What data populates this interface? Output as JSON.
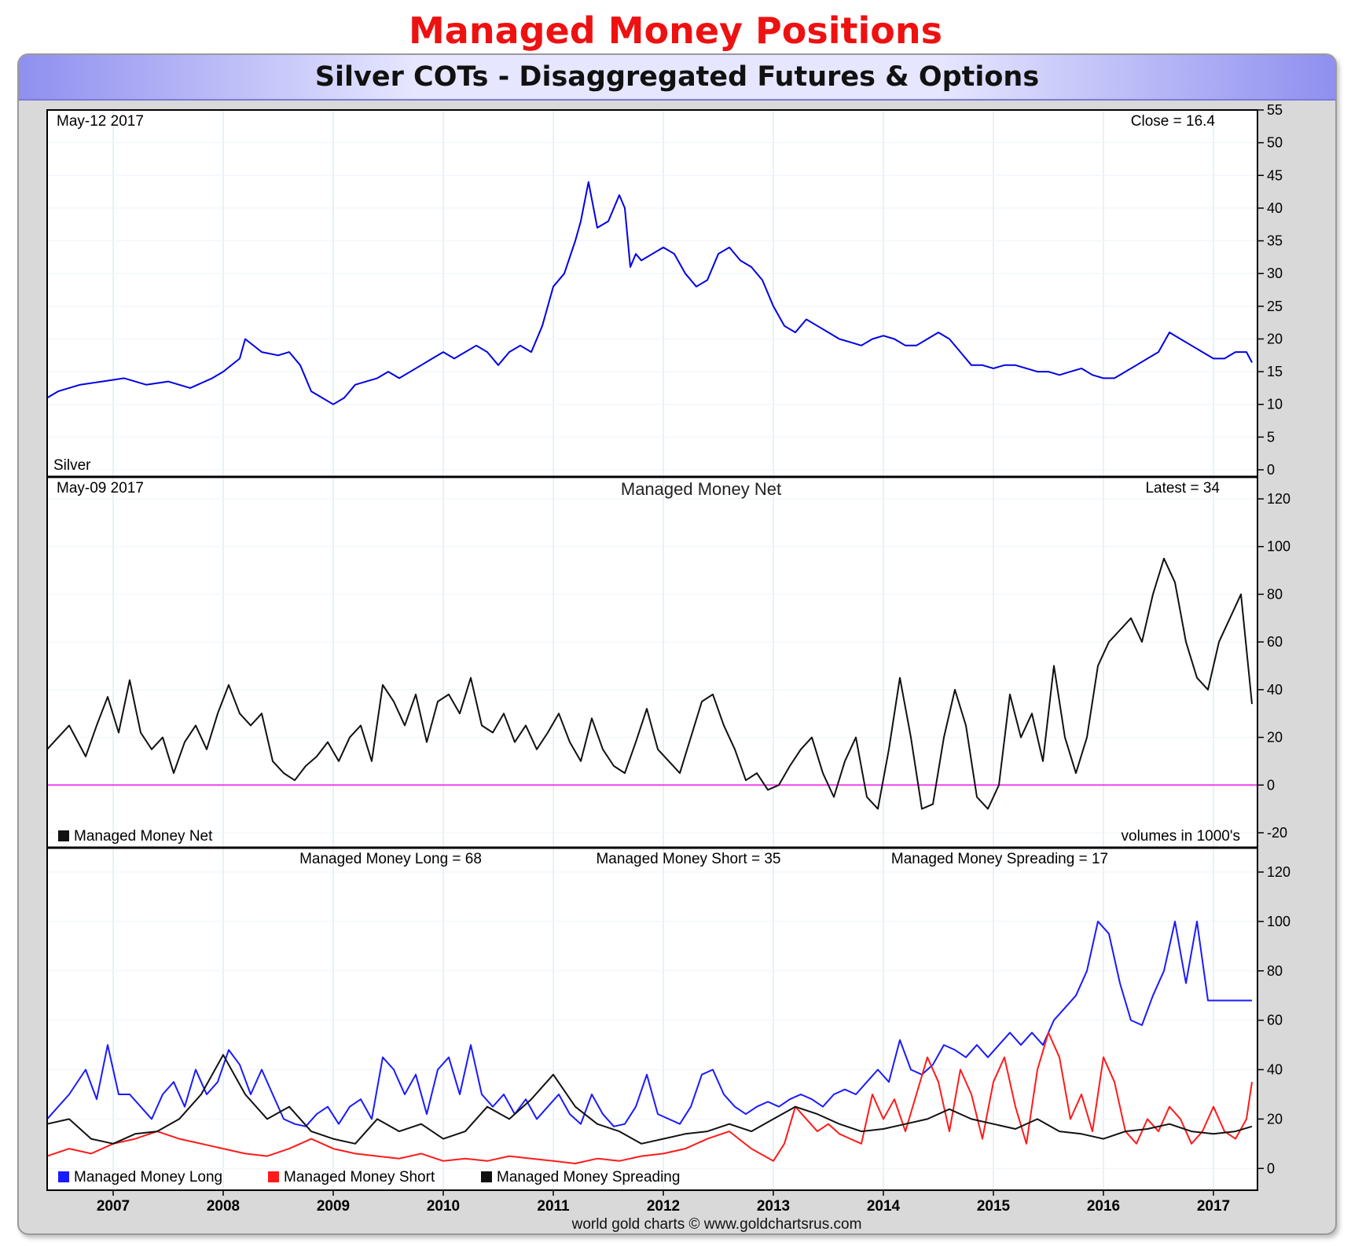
{
  "page": {
    "title": "Managed Money Positions",
    "subtitle": "Silver COTs - Disaggregated Futures & Options",
    "footer": "world gold charts © www.goldchartsrus.com",
    "colors": {
      "title": "#ee1111",
      "price_line": "#0000e6",
      "net_line": "#111111",
      "zero_line": "#ee44ee",
      "long": "#1a1aff",
      "short": "#ff1a1a",
      "spreading": "#111111"
    }
  },
  "chart_data": [
    {
      "type": "line",
      "panel": "price",
      "date_label": "May-12  2017",
      "close_label": "Close = 16.4",
      "series_label": "Silver",
      "ylim": [
        0,
        55
      ],
      "yticks": [
        "0",
        "5",
        "10",
        "15",
        "20",
        "25",
        "30",
        "35",
        "40",
        "45",
        "50",
        "55"
      ],
      "xlim": [
        2006.4,
        2017.4
      ],
      "xticks": [
        "2007",
        "2008",
        "2009",
        "2010",
        "2011",
        "2012",
        "2013",
        "2014",
        "2015",
        "2016",
        "2017"
      ],
      "grid": true,
      "series": [
        {
          "color": "#0000e6",
          "x": [
            2006.4,
            2006.5,
            2006.7,
            2006.9,
            2007.1,
            2007.3,
            2007.5,
            2007.7,
            2007.9,
            2008.0,
            2008.15,
            2008.2,
            2008.35,
            2008.5,
            2008.6,
            2008.7,
            2008.8,
            2008.9,
            2009.0,
            2009.1,
            2009.2,
            2009.4,
            2009.5,
            2009.6,
            2009.8,
            2009.9,
            2010.0,
            2010.1,
            2010.3,
            2010.4,
            2010.5,
            2010.6,
            2010.7,
            2010.8,
            2010.9,
            2011.0,
            2011.1,
            2011.2,
            2011.25,
            2011.32,
            2011.4,
            2011.5,
            2011.6,
            2011.65,
            2011.7,
            2011.75,
            2011.8,
            2011.9,
            2012.0,
            2012.1,
            2012.2,
            2012.3,
            2012.4,
            2012.5,
            2012.6,
            2012.7,
            2012.8,
            2012.9,
            2013.0,
            2013.1,
            2013.2,
            2013.3,
            2013.4,
            2013.5,
            2013.6,
            2013.7,
            2013.8,
            2013.9,
            2014.0,
            2014.1,
            2014.2,
            2014.3,
            2014.4,
            2014.5,
            2014.6,
            2014.7,
            2014.8,
            2014.9,
            2015.0,
            2015.1,
            2015.2,
            2015.3,
            2015.4,
            2015.5,
            2015.6,
            2015.7,
            2015.8,
            2015.9,
            2016.0,
            2016.1,
            2016.2,
            2016.3,
            2016.4,
            2016.5,
            2016.6,
            2016.7,
            2016.8,
            2016.9,
            2017.0,
            2017.1,
            2017.2,
            2017.3,
            2017.35
          ],
          "y": [
            11,
            12,
            13,
            13.5,
            14,
            13,
            13.5,
            12.5,
            14,
            15,
            17,
            20,
            18,
            17.5,
            18,
            16,
            12,
            11,
            10,
            11,
            13,
            14,
            15,
            14,
            16,
            17,
            18,
            17,
            19,
            18,
            16,
            18,
            19,
            18,
            22,
            28,
            30,
            35,
            38,
            44,
            37,
            38,
            42,
            40,
            31,
            33,
            32,
            33,
            34,
            33,
            30,
            28,
            29,
            33,
            34,
            32,
            31,
            29,
            25,
            22,
            21,
            23,
            22,
            21,
            20,
            19.5,
            19,
            20,
            20.5,
            20,
            19,
            19,
            20,
            21,
            20,
            18,
            16,
            16,
            15.5,
            16,
            16,
            15.5,
            15,
            15,
            14.5,
            15,
            15.5,
            14.5,
            14,
            14,
            15,
            16,
            17,
            18,
            21,
            20,
            19,
            18,
            17,
            17,
            18,
            18,
            16.4
          ]
        }
      ]
    },
    {
      "type": "line",
      "panel": "net",
      "title": "Managed Money Net",
      "date_label": "May-09  2017",
      "latest_label": "Latest = 34",
      "legend": [
        "Managed Money Net"
      ],
      "note": "volumes in 1000's",
      "ylim": [
        -20,
        120
      ],
      "yticks": [
        "-20",
        "0",
        "20",
        "40",
        "60",
        "80",
        "100",
        "120"
      ],
      "xlim": [
        2006.4,
        2017.4
      ],
      "series": [
        {
          "name": "Managed Money Net",
          "color": "#111111",
          "x": [
            2006.4,
            2006.5,
            2006.6,
            2006.75,
            2006.85,
            2006.95,
            2007.05,
            2007.15,
            2007.25,
            2007.35,
            2007.45,
            2007.55,
            2007.65,
            2007.75,
            2007.85,
            2007.95,
            2008.05,
            2008.15,
            2008.25,
            2008.35,
            2008.45,
            2008.55,
            2008.65,
            2008.75,
            2008.85,
            2008.95,
            2009.05,
            2009.15,
            2009.25,
            2009.35,
            2009.45,
            2009.55,
            2009.65,
            2009.75,
            2009.85,
            2009.95,
            2010.05,
            2010.15,
            2010.25,
            2010.35,
            2010.45,
            2010.55,
            2010.65,
            2010.75,
            2010.85,
            2010.95,
            2011.05,
            2011.15,
            2011.25,
            2011.35,
            2011.45,
            2011.55,
            2011.65,
            2011.75,
            2011.85,
            2011.95,
            2012.05,
            2012.15,
            2012.25,
            2012.35,
            2012.45,
            2012.55,
            2012.65,
            2012.75,
            2012.85,
            2012.95,
            2013.05,
            2013.15,
            2013.25,
            2013.35,
            2013.45,
            2013.55,
            2013.65,
            2013.75,
            2013.85,
            2013.95,
            2014.05,
            2014.15,
            2014.25,
            2014.35,
            2014.45,
            2014.55,
            2014.65,
            2014.75,
            2014.85,
            2014.95,
            2015.05,
            2015.15,
            2015.25,
            2015.35,
            2015.45,
            2015.55,
            2015.65,
            2015.75,
            2015.85,
            2015.95,
            2016.05,
            2016.15,
            2016.25,
            2016.35,
            2016.45,
            2016.55,
            2016.65,
            2016.75,
            2016.85,
            2016.95,
            2017.05,
            2017.15,
            2017.25,
            2017.35
          ],
          "y": [
            15,
            20,
            25,
            12,
            25,
            37,
            22,
            44,
            22,
            15,
            20,
            5,
            18,
            25,
            15,
            30,
            42,
            30,
            25,
            30,
            10,
            5,
            2,
            8,
            12,
            18,
            10,
            20,
            25,
            10,
            42,
            35,
            25,
            38,
            18,
            35,
            38,
            30,
            45,
            25,
            22,
            30,
            18,
            25,
            15,
            22,
            30,
            18,
            10,
            28,
            15,
            8,
            5,
            18,
            32,
            15,
            10,
            5,
            20,
            35,
            38,
            25,
            15,
            2,
            5,
            -2,
            0,
            8,
            15,
            20,
            5,
            -5,
            10,
            20,
            -5,
            -10,
            15,
            45,
            20,
            -10,
            -8,
            20,
            40,
            25,
            -5,
            -10,
            0,
            38,
            20,
            30,
            10,
            50,
            20,
            5,
            20,
            50,
            60,
            65,
            70,
            60,
            80,
            95,
            85,
            60,
            45,
            40,
            60,
            70,
            80,
            34
          ]
        }
      ]
    },
    {
      "type": "line",
      "panel": "positions",
      "headers": [
        "Managed Money Long = 68",
        "Managed Money Short = 35",
        "Managed Money Spreading = 17"
      ],
      "legend": [
        "Managed Money Long",
        "Managed Money Short",
        "Managed Money Spreading"
      ],
      "ylim": [
        -5,
        120
      ],
      "yticks": [
        "0",
        "20",
        "40",
        "60",
        "80",
        "100",
        "120"
      ],
      "xlim": [
        2006.4,
        2017.4
      ],
      "series": [
        {
          "name": "Managed Money Long",
          "color": "#1a1aff",
          "x": [
            2006.4,
            2006.5,
            2006.6,
            2006.75,
            2006.85,
            2006.95,
            2007.05,
            2007.15,
            2007.25,
            2007.35,
            2007.45,
            2007.55,
            2007.65,
            2007.75,
            2007.85,
            2007.95,
            2008.05,
            2008.15,
            2008.25,
            2008.35,
            2008.45,
            2008.55,
            2008.65,
            2008.75,
            2008.85,
            2008.95,
            2009.05,
            2009.15,
            2009.25,
            2009.35,
            2009.45,
            2009.55,
            2009.65,
            2009.75,
            2009.85,
            2009.95,
            2010.05,
            2010.15,
            2010.25,
            2010.35,
            2010.45,
            2010.55,
            2010.65,
            2010.75,
            2010.85,
            2010.95,
            2011.05,
            2011.15,
            2011.25,
            2011.35,
            2011.45,
            2011.55,
            2011.65,
            2011.75,
            2011.85,
            2011.95,
            2012.05,
            2012.15,
            2012.25,
            2012.35,
            2012.45,
            2012.55,
            2012.65,
            2012.75,
            2012.85,
            2012.95,
            2013.05,
            2013.15,
            2013.25,
            2013.35,
            2013.45,
            2013.55,
            2013.65,
            2013.75,
            2013.85,
            2013.95,
            2014.05,
            2014.15,
            2014.25,
            2014.35,
            2014.45,
            2014.55,
            2014.65,
            2014.75,
            2014.85,
            2014.95,
            2015.05,
            2015.15,
            2015.25,
            2015.35,
            2015.45,
            2015.55,
            2015.65,
            2015.75,
            2015.85,
            2015.95,
            2016.05,
            2016.15,
            2016.25,
            2016.35,
            2016.45,
            2016.55,
            2016.65,
            2016.75,
            2016.85,
            2016.95,
            2017.05,
            2017.15,
            2017.25,
            2017.35
          ],
          "y": [
            20,
            25,
            30,
            40,
            28,
            50,
            30,
            30,
            25,
            20,
            30,
            35,
            25,
            40,
            30,
            35,
            48,
            42,
            30,
            40,
            30,
            20,
            18,
            17,
            22,
            25,
            18,
            25,
            28,
            20,
            45,
            40,
            30,
            38,
            22,
            40,
            45,
            30,
            50,
            30,
            25,
            30,
            22,
            28,
            20,
            25,
            30,
            22,
            18,
            30,
            22,
            17,
            18,
            25,
            38,
            22,
            20,
            18,
            25,
            38,
            40,
            30,
            25,
            22,
            25,
            27,
            25,
            28,
            30,
            28,
            25,
            30,
            32,
            30,
            35,
            40,
            35,
            52,
            40,
            38,
            42,
            50,
            48,
            45,
            50,
            45,
            50,
            55,
            50,
            55,
            50,
            60,
            65,
            70,
            80,
            100,
            95,
            75,
            60,
            58,
            70,
            80,
            100,
            75,
            100,
            68,
            68,
            68,
            68,
            68
          ]
        },
        {
          "name": "Managed Money Short",
          "color": "#ff1a1a",
          "x": [
            2006.4,
            2006.6,
            2006.8,
            2007.0,
            2007.2,
            2007.4,
            2007.6,
            2007.8,
            2008.0,
            2008.2,
            2008.4,
            2008.6,
            2008.8,
            2009.0,
            2009.2,
            2009.4,
            2009.6,
            2009.8,
            2010.0,
            2010.2,
            2010.4,
            2010.6,
            2010.8,
            2011.0,
            2011.2,
            2011.4,
            2011.6,
            2011.8,
            2012.0,
            2012.2,
            2012.4,
            2012.6,
            2012.8,
            2013.0,
            2013.1,
            2013.2,
            2013.3,
            2013.4,
            2013.5,
            2013.6,
            2013.7,
            2013.8,
            2013.9,
            2014.0,
            2014.1,
            2014.2,
            2014.3,
            2014.4,
            2014.5,
            2014.6,
            2014.7,
            2014.8,
            2014.9,
            2015.0,
            2015.1,
            2015.2,
            2015.3,
            2015.4,
            2015.5,
            2015.6,
            2015.7,
            2015.8,
            2015.9,
            2016.0,
            2016.1,
            2016.2,
            2016.3,
            2016.4,
            2016.5,
            2016.6,
            2016.7,
            2016.8,
            2016.9,
            2017.0,
            2017.1,
            2017.2,
            2017.3,
            2017.35
          ],
          "y": [
            5,
            8,
            6,
            10,
            12,
            15,
            12,
            10,
            8,
            6,
            5,
            8,
            12,
            8,
            6,
            5,
            4,
            6,
            3,
            4,
            3,
            5,
            4,
            3,
            2,
            4,
            3,
            5,
            6,
            8,
            12,
            15,
            8,
            3,
            10,
            25,
            20,
            15,
            18,
            14,
            12,
            10,
            30,
            20,
            28,
            15,
            30,
            45,
            35,
            15,
            40,
            30,
            12,
            35,
            45,
            25,
            10,
            40,
            55,
            45,
            20,
            30,
            15,
            45,
            35,
            15,
            10,
            20,
            15,
            25,
            20,
            10,
            15,
            25,
            15,
            12,
            20,
            35
          ]
        },
        {
          "name": "Managed Money Spreading",
          "color": "#111111",
          "x": [
            2006.4,
            2006.6,
            2006.8,
            2007.0,
            2007.2,
            2007.4,
            2007.6,
            2007.8,
            2008.0,
            2008.2,
            2008.4,
            2008.6,
            2008.8,
            2009.0,
            2009.2,
            2009.4,
            2009.6,
            2009.8,
            2010.0,
            2010.2,
            2010.4,
            2010.6,
            2010.8,
            2011.0,
            2011.2,
            2011.4,
            2011.6,
            2011.8,
            2012.0,
            2012.2,
            2012.4,
            2012.6,
            2012.8,
            2013.0,
            2013.2,
            2013.4,
            2013.6,
            2013.8,
            2014.0,
            2014.2,
            2014.4,
            2014.6,
            2014.8,
            2015.0,
            2015.2,
            2015.4,
            2015.6,
            2015.8,
            2016.0,
            2016.2,
            2016.4,
            2016.6,
            2016.8,
            2017.0,
            2017.2,
            2017.35
          ],
          "y": [
            18,
            20,
            12,
            10,
            14,
            15,
            20,
            30,
            46,
            30,
            20,
            25,
            15,
            12,
            10,
            20,
            15,
            18,
            12,
            15,
            25,
            20,
            28,
            38,
            25,
            18,
            15,
            10,
            12,
            14,
            15,
            18,
            15,
            20,
            25,
            22,
            18,
            15,
            16,
            18,
            20,
            24,
            20,
            18,
            16,
            20,
            15,
            14,
            12,
            15,
            16,
            18,
            15,
            14,
            15,
            17
          ]
        }
      ]
    }
  ]
}
